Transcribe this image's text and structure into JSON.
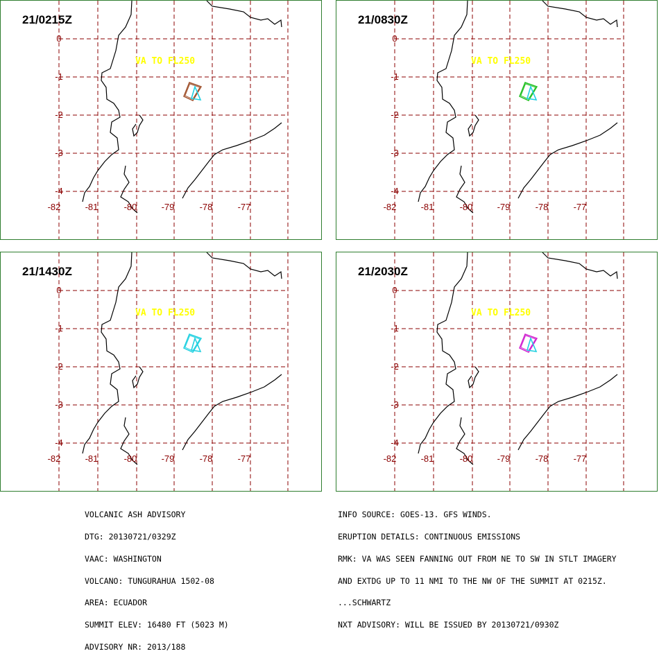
{
  "panels": [
    {
      "time": "21/0215Z",
      "label": "VA TO FL250",
      "color": "#a0522d"
    },
    {
      "time": "21/0830Z",
      "label": "VA TO FL250",
      "color": "#22c022"
    },
    {
      "time": "21/1430Z",
      "label": "VA TO FL250",
      "color": "#20d0e0"
    },
    {
      "time": "21/2030Z",
      "label": "VA TO FL250",
      "color": "#d020d0"
    }
  ],
  "lat_labels": [
    "0",
    "-1",
    "-2",
    "-3",
    "-4"
  ],
  "lon_labels": [
    "-82",
    "-81",
    "-80",
    "-79",
    "-78",
    "-77"
  ],
  "colors": {
    "grid": "#8b0000",
    "label_text": "#ffff00",
    "volcano": "#20d0e0",
    "border": "#2e7d2e",
    "coast": "#000000"
  },
  "advisory_left": [
    "VOLCANIC ASH ADVISORY",
    "DTG: 20130721/0329Z",
    "VAAC: WASHINGTON",
    "VOLCANO: TUNGURAHUA 1502-08",
    "AREA: ECUADOR",
    "SUMMIT ELEV: 16480 FT (5023 M)",
    "ADVISORY NR: 2013/188"
  ],
  "advisory_right": [
    "INFO SOURCE: GOES-13. GFS WINDS.",
    "ERUPTION DETAILS: CONTINUOUS EMISSIONS",
    "RMK: VA WAS SEEN FANNING OUT FROM NE TO SW IN STLT IMAGERY",
    "AND EXTDG UP TO 11 NMI TO THE NW OF THE SUMMIT AT 0215Z.",
    "...SCHWARTZ",
    "NXT ADVISORY: WILL BE ISSUED BY 20130721/0930Z"
  ]
}
